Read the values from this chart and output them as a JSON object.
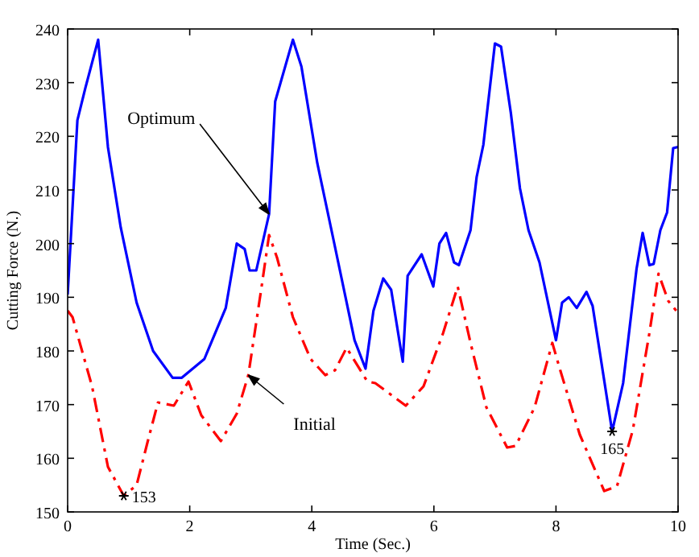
{
  "chart_data": {
    "type": "line",
    "xlabel": "Time (Sec.)",
    "ylabel": "Cutting Force (N.)",
    "xlim": [
      0,
      10
    ],
    "xticks": [
      0,
      2,
      4,
      6,
      8,
      10
    ],
    "ylim": [
      150,
      240
    ],
    "yticks": [
      150,
      160,
      170,
      180,
      190,
      200,
      210,
      220,
      230,
      240
    ],
    "grid": false,
    "series": [
      {
        "name": "Optimum",
        "color": "#0000ff",
        "line_style": "solid",
        "x": [
          0,
          0.16,
          0.29,
          0.5,
          0.66,
          0.87,
          1.13,
          1.4,
          1.72,
          1.87,
          2.24,
          2.59,
          2.77,
          2.9,
          2.98,
          3.09,
          3.3,
          3.4,
          3.69,
          3.83,
          4.09,
          4.35,
          4.7,
          4.88,
          5.01,
          5.17,
          5.3,
          5.49,
          5.57,
          5.8,
          5.99,
          6.09,
          6.2,
          6.33,
          6.41,
          6.6,
          6.7,
          6.81,
          7.0,
          7.1,
          7.26,
          7.41,
          7.55,
          7.73,
          8.0,
          8.1,
          8.21,
          8.34,
          8.5,
          8.6,
          8.92,
          9.1,
          9.32,
          9.42,
          9.53,
          9.6,
          9.71,
          9.82,
          9.92,
          10
        ],
        "values": [
          190.5,
          223,
          229,
          238,
          218,
          203,
          189,
          180,
          175,
          175,
          178.5,
          188,
          200,
          199,
          195,
          195,
          205.5,
          226.5,
          238,
          233,
          215,
          201,
          182,
          176.7,
          187.5,
          193.5,
          191.4,
          178,
          194,
          198,
          192,
          200,
          202,
          196.5,
          196,
          202.5,
          212.4,
          218.4,
          237.3,
          236.7,
          224.4,
          210.3,
          202.5,
          196.5,
          182,
          189,
          190,
          188,
          191,
          188.4,
          165,
          174,
          195.3,
          202,
          196,
          196.2,
          202.5,
          205.8,
          217.8,
          218
        ]
      },
      {
        "name": "Initial",
        "color": "#ff0000",
        "line_style": "dashdot",
        "x": [
          0,
          0.08,
          0.4,
          0.66,
          0.92,
          1.13,
          1.32,
          1.48,
          1.74,
          1.98,
          2.19,
          2.51,
          2.77,
          2.96,
          3.17,
          3.3,
          3.43,
          3.69,
          3.98,
          4.22,
          4.38,
          4.57,
          4.91,
          5.04,
          5.54,
          5.83,
          6.15,
          6.39,
          6.6,
          6.86,
          7.2,
          7.34,
          7.65,
          7.94,
          8.07,
          8.39,
          8.79,
          9.0,
          9.26,
          9.53,
          9.68,
          9.84,
          9.97
        ],
        "values": [
          187.5,
          186.3,
          173.4,
          158.4,
          153,
          155,
          163.5,
          170.4,
          169.8,
          174.3,
          168,
          163.2,
          168.3,
          175.5,
          191.4,
          201.6,
          197.4,
          186.3,
          178.5,
          175.5,
          176.4,
          180.6,
          174.3,
          174,
          169.8,
          173.4,
          183.3,
          192,
          181.5,
          169.5,
          162,
          162.3,
          169.5,
          181.5,
          176.4,
          164.4,
          153.9,
          154.8,
          165.3,
          183.3,
          194.4,
          189.3,
          187.5
        ]
      }
    ],
    "annotations": [
      {
        "text": "153",
        "x": 0.92,
        "y": 153
      },
      {
        "text": "165",
        "x": 8.92,
        "y": 165
      }
    ]
  }
}
